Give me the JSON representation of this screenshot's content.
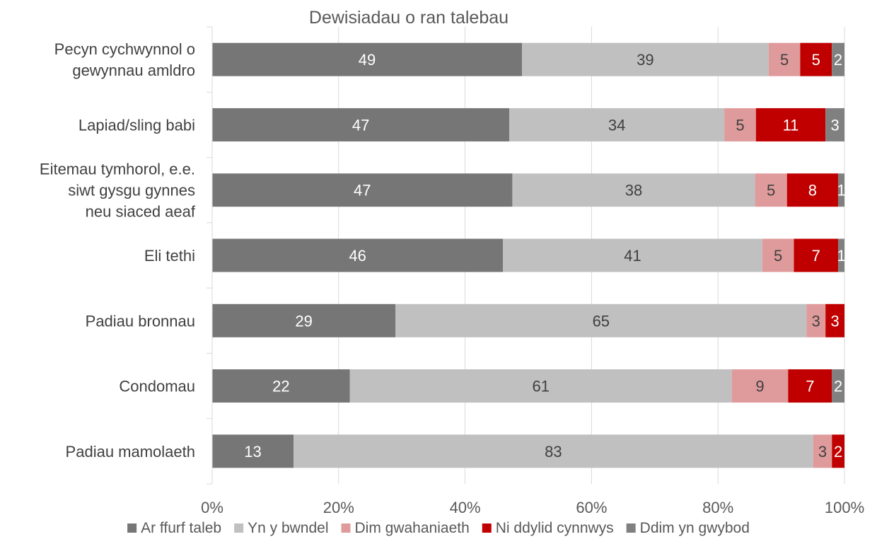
{
  "chart_data": {
    "type": "bar",
    "orientation": "horizontal",
    "stacked": "100%",
    "title": "Dewisiadau o ran talebau",
    "xlabel": "",
    "ylabel": "",
    "xlim": [
      0,
      100
    ],
    "x_ticks": [
      "0%",
      "20%",
      "40%",
      "60%",
      "80%",
      "100%"
    ],
    "grid": "vertical",
    "legend_position": "bottom",
    "categories": [
      [
        "Pecyn cychwynnol o",
        "gewynnau amldro"
      ],
      [
        "Lapiad/sling babi"
      ],
      [
        "Eitemau tymhorol, e.e.",
        "siwt gysgu gynnes",
        "neu siaced aeaf"
      ],
      [
        "Eli tethi"
      ],
      [
        "Padiau bronnau"
      ],
      [
        "Condomau"
      ],
      [
        "Padiau mamolaeth"
      ]
    ],
    "series": [
      {
        "name": "Ar ffurf taleb",
        "color": "#767676",
        "label_color": "#ffffff",
        "values": [
          49,
          47,
          47,
          46,
          29,
          22,
          13
        ],
        "labels": [
          "49",
          "47",
          "47",
          "46",
          "29",
          "22",
          "13"
        ]
      },
      {
        "name": "Yn y bwndel",
        "color": "#c0c0c0",
        "label_color": "#404040",
        "values": [
          39,
          34,
          38,
          41,
          65,
          61,
          83
        ],
        "labels": [
          "39",
          "34",
          "38",
          "41",
          "65",
          "61",
          "83"
        ]
      },
      {
        "name": "Dim gwahaniaeth",
        "color": "#df9b9b",
        "label_color": "#404040",
        "values": [
          5,
          5,
          5,
          5,
          3,
          9,
          3
        ],
        "labels": [
          "5",
          "5",
          "5",
          "5",
          "3",
          "9",
          "3"
        ]
      },
      {
        "name": "Ni ddylid cynnwys",
        "color": "#c00000",
        "label_color": "#ffffff",
        "values": [
          5,
          11,
          8,
          7,
          3,
          7,
          2
        ],
        "labels": [
          "5",
          "11",
          "8",
          "7",
          "3",
          "7",
          "2"
        ]
      },
      {
        "name": "Ddim yn gwybod",
        "color": "#808080",
        "label_color": "#ffffff",
        "values": [
          2,
          3,
          1,
          1,
          0,
          2,
          0
        ],
        "labels": [
          "2",
          "3",
          "1",
          "1",
          "",
          "2",
          ""
        ]
      }
    ]
  }
}
